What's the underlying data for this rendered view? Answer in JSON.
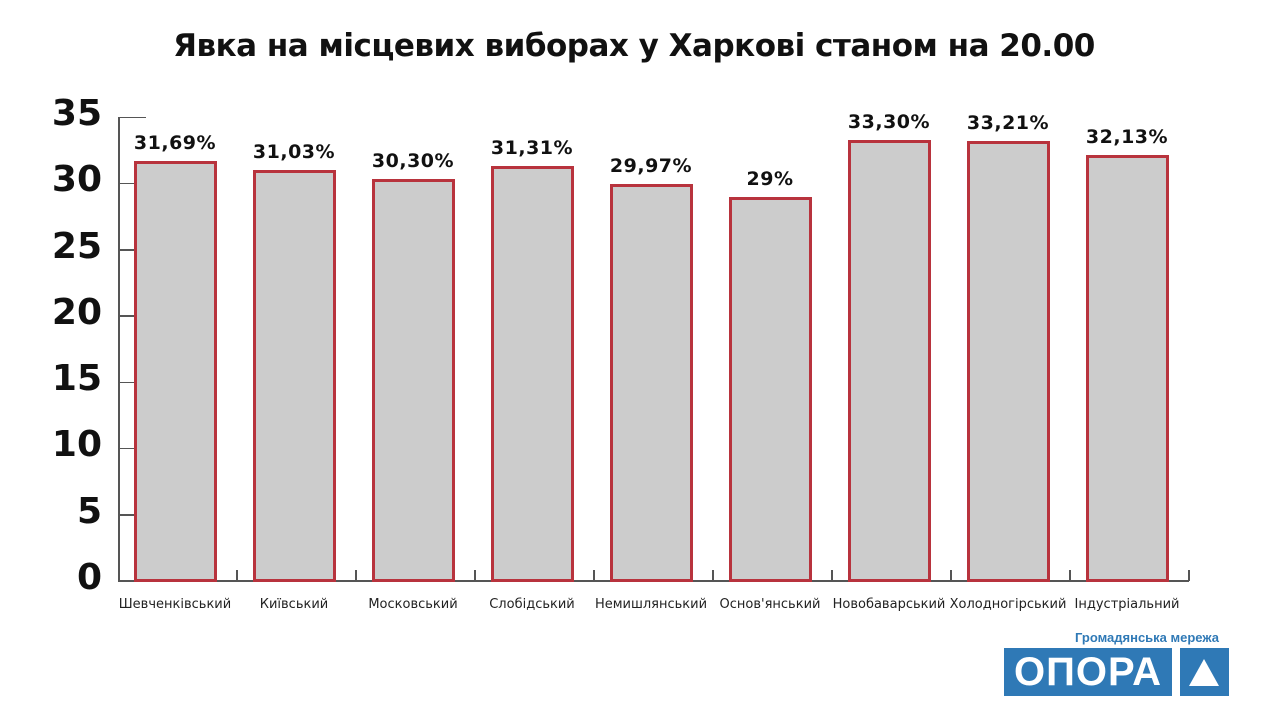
{
  "title": "Явка на місцевих виборах у Харкові станом на 20.00",
  "chart_data": {
    "type": "bar",
    "title": "Явка на місцевих виборах у Харкові станом на 20.00",
    "xlabel": "",
    "ylabel": "",
    "ylim": [
      0,
      35
    ],
    "yticks": [
      0,
      5,
      10,
      15,
      20,
      25,
      30,
      35
    ],
    "grid": false,
    "legend": null,
    "categories": [
      "Шевченківський",
      "Київський",
      "Московський",
      "Слобідський",
      "Немишлянський",
      "Основ'янський",
      "Новобаварський",
      "Холодногірський",
      "Індустріальний"
    ],
    "values": [
      31.69,
      31.03,
      30.3,
      31.31,
      29.97,
      29,
      33.3,
      33.21,
      32.13
    ],
    "data_labels": [
      "31,69%",
      "31,03%",
      "30,30%",
      "31,31%",
      "29,97%",
      "29%",
      "33,30%",
      "33,21%",
      "32,13%"
    ],
    "colors": {
      "bar_fill": "#cccccc",
      "bar_border": "#b8333d"
    }
  },
  "yticks_labels": [
    "0",
    "5",
    "10",
    "15",
    "20",
    "25",
    "30",
    "35"
  ],
  "logo": {
    "subtitle": "Громадянська мережа",
    "name": "ОПОРА",
    "color": "#2f79b6"
  }
}
